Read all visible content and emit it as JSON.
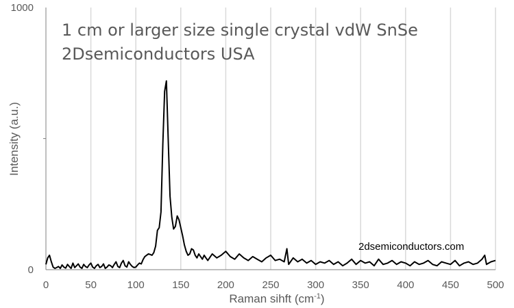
{
  "chart_data": {
    "type": "line",
    "annotations": [
      "1 cm or larger size single crystal vdW SnSe",
      "2Dsemiconductors USA"
    ],
    "watermark": "2dsemiconductors.com",
    "xlabel": "Raman sihft (cm",
    "xlabel_sup": "-1",
    "xlabel_tail": ")",
    "ylabel": "Intensity (a.u.)",
    "xlim": [
      0,
      500
    ],
    "ylim": [
      0,
      1000
    ],
    "x_ticks": [
      "0",
      "50",
      "100",
      "150",
      "200",
      "250",
      "300",
      "350",
      "400",
      "450",
      "500"
    ],
    "y_ticks": [
      "0",
      "1000"
    ],
    "grid": "vertical",
    "colors": {
      "line": "#000000",
      "grid": "#d9d9d9",
      "axis": "#7f7f7f"
    },
    "series": [
      {
        "x": [
          0,
          2,
          4,
          6,
          8,
          10,
          12,
          14,
          16,
          18,
          20,
          22,
          24,
          26,
          28,
          30,
          32,
          34,
          36,
          38,
          40,
          42,
          44,
          46,
          48,
          50,
          52,
          54,
          56,
          58,
          60,
          62,
          64,
          66,
          68,
          70,
          72,
          74,
          76,
          78,
          80,
          82,
          84,
          86,
          88,
          90,
          92,
          94,
          96,
          98,
          100,
          102,
          104,
          106,
          108,
          110,
          112,
          114,
          116,
          118,
          120,
          122,
          124,
          126,
          128,
          130,
          132,
          134,
          136,
          138,
          140,
          142,
          144,
          146,
          148,
          150,
          152,
          154,
          156,
          158,
          160,
          162,
          164,
          166,
          168,
          170,
          172,
          174,
          176,
          178,
          180,
          185,
          190,
          195,
          200,
          205,
          210,
          215,
          220,
          225,
          230,
          235,
          240,
          245,
          250,
          255,
          260,
          265,
          268,
          270,
          275,
          280,
          285,
          290,
          295,
          300,
          305,
          310,
          315,
          320,
          325,
          330,
          335,
          340,
          345,
          350,
          355,
          360,
          365,
          370,
          375,
          380,
          385,
          390,
          395,
          400,
          405,
          410,
          415,
          420,
          425,
          430,
          435,
          440,
          445,
          450,
          455,
          460,
          465,
          470,
          475,
          480,
          485,
          488,
          490,
          495,
          500
        ],
        "y": [
          20,
          45,
          55,
          30,
          10,
          5,
          8,
          12,
          5,
          18,
          10,
          6,
          20,
          12,
          5,
          25,
          8,
          15,
          22,
          10,
          5,
          20,
          12,
          8,
          18,
          25,
          10,
          5,
          15,
          20,
          8,
          12,
          22,
          5,
          10,
          18,
          15,
          8,
          20,
          30,
          12,
          8,
          25,
          35,
          15,
          10,
          30,
          20,
          12,
          8,
          10,
          18,
          25,
          22,
          38,
          50,
          55,
          60,
          58,
          55,
          65,
          90,
          150,
          160,
          220,
          480,
          680,
          720,
          500,
          280,
          200,
          155,
          165,
          205,
          190,
          160,
          130,
          95,
          70,
          55,
          60,
          80,
          75,
          55,
          45,
          60,
          50,
          40,
          55,
          45,
          35,
          60,
          45,
          55,
          70,
          50,
          40,
          60,
          45,
          35,
          50,
          40,
          30,
          45,
          55,
          35,
          40,
          30,
          80,
          20,
          45,
          30,
          40,
          25,
          35,
          20,
          30,
          25,
          35,
          20,
          30,
          15,
          25,
          40,
          20,
          35,
          25,
          30,
          15,
          40,
          20,
          25,
          35,
          20,
          30,
          25,
          15,
          30,
          20,
          25,
          35,
          20,
          15,
          30,
          25,
          20,
          35,
          15,
          25,
          30,
          20,
          25,
          40,
          55,
          20,
          30,
          35
        ]
      }
    ]
  }
}
